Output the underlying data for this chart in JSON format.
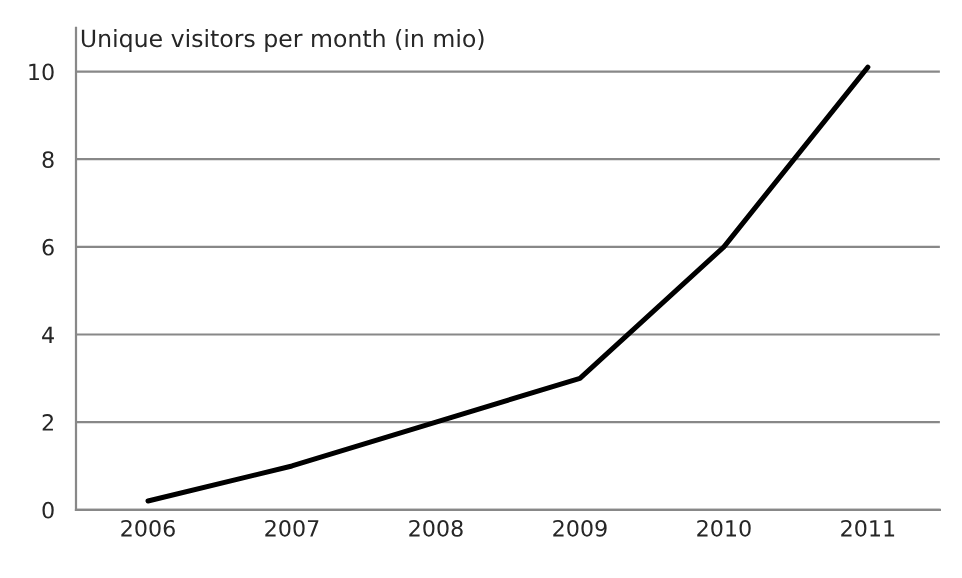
{
  "chart_data": {
    "type": "line",
    "title": "Unique visitors per month (in mio)",
    "categories": [
      "2006",
      "2007",
      "2008",
      "2009",
      "2010",
      "2011"
    ],
    "series": [
      {
        "color": "#000000",
        "values": [
          0.2,
          1.0,
          2.0,
          3.0,
          6.0,
          10.1
        ]
      }
    ],
    "ylim": [
      0,
      11
    ],
    "yticks": [
      0,
      2,
      4,
      6,
      8,
      10
    ],
    "grid": "y",
    "marker": "none",
    "line_style": "solid"
  }
}
